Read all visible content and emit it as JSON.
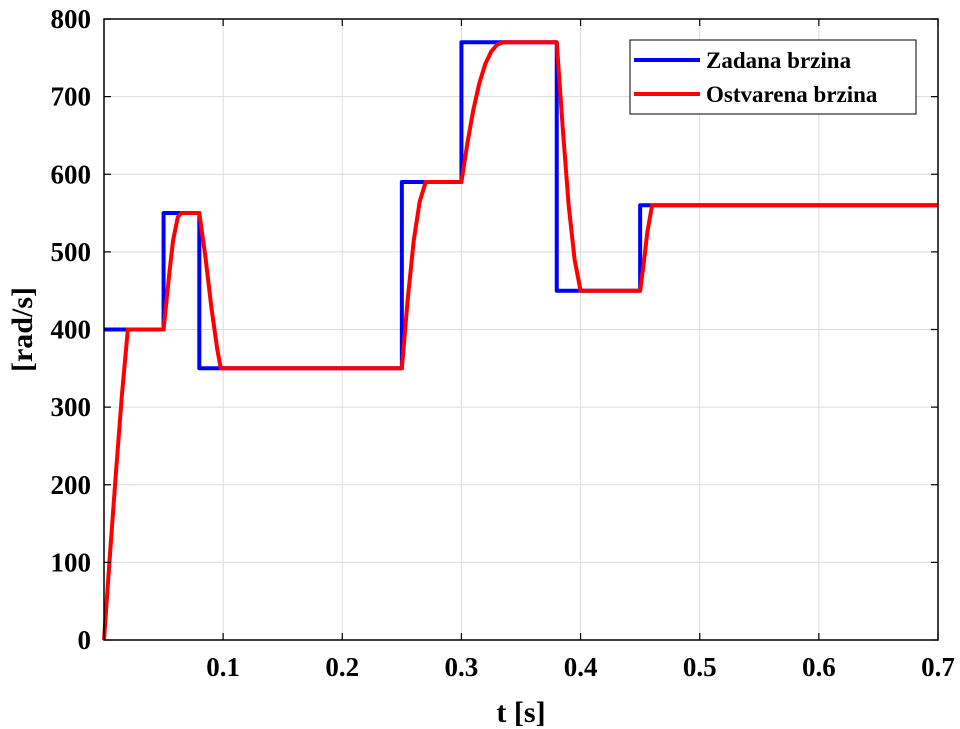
{
  "chart_data": {
    "type": "line",
    "xlabel": "t [s]",
    "ylabel": "[rad/s]",
    "xlim": [
      0,
      0.7
    ],
    "ylim": [
      0,
      800
    ],
    "xticks": [
      0.1,
      0.2,
      0.3,
      0.4,
      0.5,
      0.6,
      0.7
    ],
    "xtick_labels": [
      "0.1",
      "0.2",
      "0.3",
      "0.4",
      "0.5",
      "0.6",
      "0.7"
    ],
    "yticks": [
      0,
      100,
      200,
      300,
      400,
      500,
      600,
      700,
      800
    ],
    "ytick_labels": [
      "0",
      "100",
      "200",
      "300",
      "400",
      "500",
      "600",
      "700",
      "800"
    ],
    "grid": true,
    "legend_position": "top-right",
    "series": [
      {
        "name": "Zadana brzina",
        "color": "#0000ff",
        "x": [
          0,
          0.05,
          0.05,
          0.08,
          0.08,
          0.25,
          0.25,
          0.3,
          0.3,
          0.38,
          0.38,
          0.45,
          0.45,
          0.7
        ],
        "y": [
          400,
          400,
          550,
          550,
          350,
          350,
          590,
          590,
          770,
          770,
          450,
          450,
          560,
          560
        ]
      },
      {
        "name": "Ostvarena brzina",
        "color": "#ff0000",
        "x": [
          0,
          0.005,
          0.01,
          0.015,
          0.02,
          0.05,
          0.052,
          0.055,
          0.058,
          0.062,
          0.065,
          0.08,
          0.085,
          0.09,
          0.095,
          0.098,
          0.25,
          0.255,
          0.26,
          0.265,
          0.27,
          0.3,
          0.305,
          0.31,
          0.315,
          0.32,
          0.325,
          0.33,
          0.335,
          0.339,
          0.38,
          0.385,
          0.39,
          0.395,
          0.4,
          0.45,
          0.453,
          0.456,
          0.46,
          0.7
        ],
        "y": [
          0,
          110,
          215,
          315,
          400,
          400,
          430,
          475,
          515,
          545,
          550,
          550,
          495,
          430,
          375,
          350,
          350,
          440,
          515,
          565,
          590,
          590,
          640,
          683,
          717,
          742,
          758,
          767,
          770,
          770,
          770,
          660,
          560,
          490,
          450,
          450,
          485,
          525,
          560,
          560
        ]
      }
    ]
  }
}
